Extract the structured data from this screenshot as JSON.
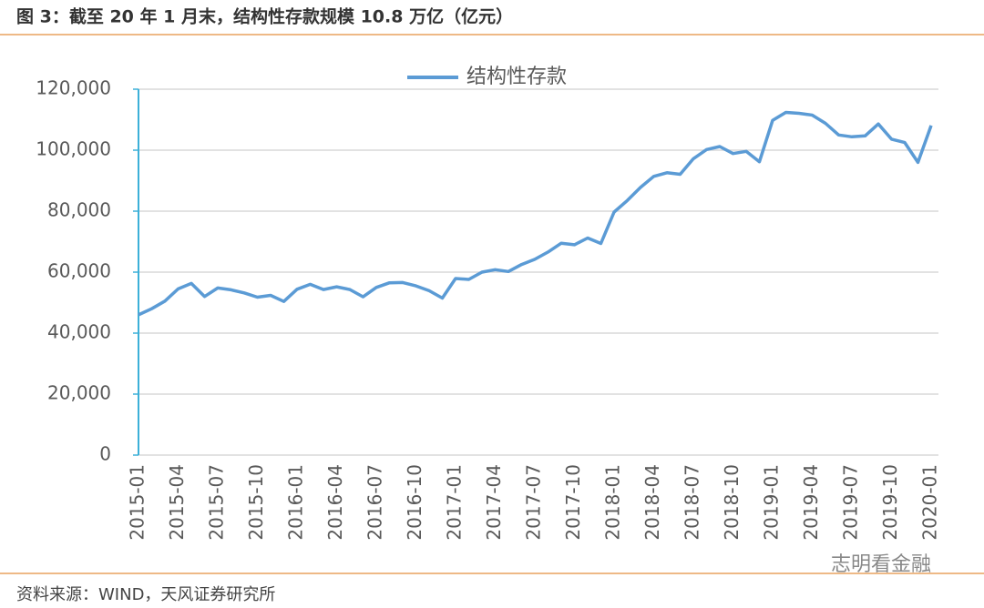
{
  "chart_data": {
    "type": "line",
    "title": "图 3：截至 20 年 1 月末，结构性存款规模 10.8 万亿（亿元）",
    "source": "资料来源：WIND，天风证券研究所",
    "watermark": "志明看金融",
    "categories": [
      "2015-01",
      null,
      null,
      "2015-04",
      null,
      null,
      "2015-07",
      null,
      null,
      "2015-10",
      null,
      null,
      "2016-01",
      null,
      null,
      "2016-04",
      null,
      null,
      "2016-07",
      null,
      null,
      "2016-10",
      null,
      null,
      "2017-01",
      null,
      null,
      "2017-04",
      null,
      null,
      "2017-07",
      null,
      null,
      "2017-10",
      null,
      null,
      "2018-01",
      null,
      null,
      "2018-04",
      null,
      null,
      "2018-07",
      null,
      null,
      "2018-10",
      null,
      null,
      "2019-01",
      null,
      null,
      "2019-04",
      null,
      null,
      "2019-07",
      null,
      null,
      "2019-10",
      null,
      null,
      "2020-01"
    ],
    "series": [
      {
        "name": "结构性存款",
        "color": "#5b9bd5",
        "values": [
          46000,
          48000,
          50500,
          54500,
          56300,
          52000,
          54800,
          54200,
          53200,
          51800,
          52400,
          50400,
          54400,
          56000,
          54300,
          55200,
          54300,
          51900,
          55000,
          56500,
          56600,
          55500,
          53900,
          51500,
          57900,
          57600,
          60000,
          60800,
          60200,
          62500,
          64200,
          66600,
          69500,
          69000,
          71200,
          69400,
          79700,
          83500,
          87800,
          91400,
          92600,
          92100,
          97200,
          100200,
          101200,
          98900,
          99600,
          96200,
          109800,
          112400,
          112100,
          111500,
          108800,
          105000,
          104400,
          104700,
          108600,
          103600,
          102500,
          96000,
          108100
        ]
      }
    ],
    "ylim": [
      0,
      120000
    ],
    "yticks": [
      0,
      {
        "value": 20000,
        "label": "20,000"
      },
      {
        "value": 40000,
        "label": "40,000"
      },
      {
        "value": 60000,
        "label": "60,000"
      },
      {
        "value": 80000,
        "label": "80,000"
      },
      {
        "value": 100000,
        "label": "100,000"
      },
      {
        "value": 120000,
        "label": "120,000"
      }
    ],
    "grid": true
  }
}
